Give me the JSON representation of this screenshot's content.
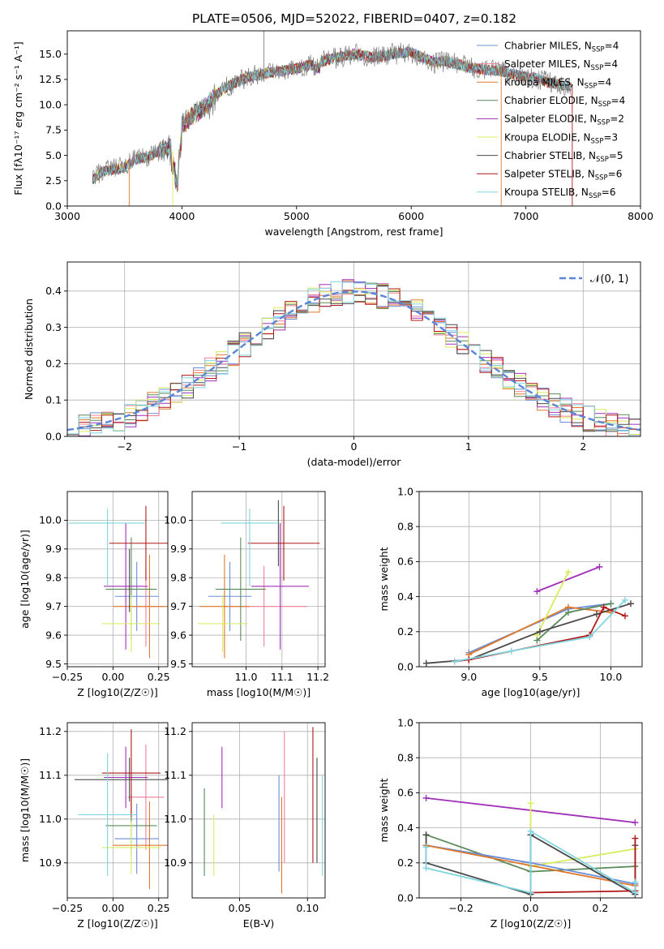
{
  "figure": {
    "title": "PLATE=0506, MJD=52022, FIBERID=0407, z=0.182",
    "colors": {
      "Chabrier MILES": "#6a8fd8",
      "Salpeter MILES": "#f07f95",
      "Kroupa MILES": "#e0782a",
      "Chabrier ELODIE": "#5a8a5a",
      "Salpeter ELODIE": "#a030b8",
      "Kroupa ELODIE": "#d8ec5c",
      "Chabrier STELIB": "#4a4a4a",
      "Salpeter STELIB": "#b01818",
      "Kroupa STELIB": "#7fd6e0"
    }
  },
  "chart_data": [
    {
      "type": "line",
      "title": "PLATE=0506, MJD=52022, FIBERID=0407, z=0.182",
      "xlabel": "wavelength [Angstrom, rest frame]",
      "ylabel": "Flux [fλ10⁻¹⁷ erg cm⁻² s⁻¹ A⁻¹]",
      "xlim": [
        3000,
        8000
      ],
      "ylim": [
        0,
        17.3
      ],
      "xticks": [
        3000,
        4000,
        5000,
        6000,
        7000,
        8000
      ],
      "yticks": [
        0.0,
        2.5,
        5.0,
        7.5,
        10.0,
        12.5,
        15.0
      ],
      "legend_position": "top-right",
      "spectrum_envelope": {
        "x": [
          3220,
          3300,
          3400,
          3500,
          3600,
          3700,
          3800,
          3900,
          3960,
          4000,
          4100,
          4200,
          4300,
          4400,
          4500,
          4600,
          4700,
          4800,
          4900,
          5000,
          5100,
          5200,
          5300,
          5400,
          5500,
          5600,
          5700,
          5800,
          5900,
          6000,
          6100,
          6200,
          6300,
          6400,
          6500,
          6600,
          6700,
          6800,
          6900,
          7000,
          7100,
          7200,
          7300,
          7400
        ],
        "y": [
          2.6,
          3.4,
          3.6,
          3.8,
          4.6,
          4.8,
          5.4,
          5.8,
          4.8,
          8.0,
          9.0,
          9.7,
          11.0,
          11.8,
          12.4,
          12.8,
          13.0,
          13.3,
          13.4,
          13.6,
          13.9,
          14.2,
          14.5,
          14.8,
          15.0,
          14.8,
          14.7,
          14.9,
          15.1,
          15.2,
          14.6,
          14.2,
          14.3,
          14.0,
          13.7,
          13.5,
          13.4,
          13.3,
          13.0,
          12.8,
          12.6,
          12.2,
          12.0,
          11.8
        ]
      },
      "series": [
        {
          "name": "Chabrier MILES, N_SSP=4"
        },
        {
          "name": "Salpeter MILES, N_SSP=4"
        },
        {
          "name": "Kroupa MILES, N_SSP=4"
        },
        {
          "name": "Chabrier ELODIE, N_SSP=4"
        },
        {
          "name": "Salpeter ELODIE, N_SSP=2"
        },
        {
          "name": "Kroupa ELODIE, N_SSP=3"
        },
        {
          "name": "Chabrier STELIB, N_SSP=5"
        },
        {
          "name": "Salpeter STELIB, N_SSP=6"
        },
        {
          "name": "Kroupa STELIB, N_SSP=6"
        }
      ]
    },
    {
      "type": "line",
      "xlabel": "(data-model)/error",
      "ylabel": "Normed distribution",
      "xlim": [
        -2.5,
        2.5
      ],
      "ylim": [
        0,
        0.48
      ],
      "xticks": [
        -2,
        -1,
        0,
        1,
        2
      ],
      "yticks": [
        0.0,
        0.1,
        0.2,
        0.3,
        0.4
      ],
      "grid": true,
      "legend_position": "top-right",
      "reference_curve": {
        "name": "𝒩(0, 1)",
        "mean": 0,
        "sigma": 1,
        "style": "dashed"
      },
      "histogram_bins": {
        "start": -2.5,
        "step": 0.1,
        "count": 50
      }
    },
    {
      "type": "scatter",
      "xlabel": "Z [log10(Z/Z☉)]",
      "ylabel": "age  [log10(age/yr)]",
      "xlim": [
        -0.25,
        0.3
      ],
      "ylim": [
        9.49,
        10.1
      ],
      "xticks": [
        -0.25,
        0.0,
        0.25
      ],
      "yticks": [
        9.5,
        9.6,
        9.7,
        9.8,
        9.9,
        10.0
      ],
      "grid": true,
      "points": [
        {
          "series": "Chabrier MILES",
          "x": 0.13,
          "y": 9.735,
          "xerr": 0.12,
          "yerr": [
            0.12,
            0.12
          ]
        },
        {
          "series": "Salpeter MILES",
          "x": 0.18,
          "y": 9.7,
          "xerr": 0.1,
          "yerr": [
            0.14,
            0.14
          ]
        },
        {
          "series": "Kroupa MILES",
          "x": 0.2,
          "y": 9.7,
          "xerr": 0.2,
          "yerr": [
            0.18,
            0.18
          ]
        },
        {
          "series": "Chabrier ELODIE",
          "x": 0.1,
          "y": 9.76,
          "xerr": 0.14,
          "yerr": [
            0.18,
            0.18
          ]
        },
        {
          "series": "Salpeter ELODIE",
          "x": 0.07,
          "y": 9.77,
          "xerr": 0.12,
          "yerr": [
            0.22,
            0.22
          ]
        },
        {
          "series": "Kroupa ELODIE",
          "x": 0.1,
          "y": 9.64,
          "xerr": 0.16,
          "yerr": [
            0.1,
            0.1
          ]
        },
        {
          "series": "Chabrier STELIB",
          "x": 0.09,
          "y": 9.78,
          "xerr": 0.0,
          "yerr": [
            0.1,
            0.12
          ]
        },
        {
          "series": "Salpeter STELIB",
          "x": 0.18,
          "y": 9.92,
          "xerr": 0.2,
          "yerr": [
            0.13,
            0.13
          ]
        },
        {
          "series": "Kroupa STELIB",
          "x": -0.03,
          "y": 9.99,
          "xerr": 0.21,
          "yerr": [
            0.22,
            0.05
          ]
        }
      ]
    },
    {
      "type": "scatter",
      "xlabel": "mass [log10(M/M☉)]",
      "ylabel": "",
      "xlim": [
        10.85,
        11.22
      ],
      "ylim": [
        9.49,
        10.1
      ],
      "xticks": [
        11.0,
        11.1,
        11.2
      ],
      "yticks": [
        9.5,
        9.6,
        9.7,
        9.8,
        9.9,
        10.0
      ],
      "grid": true,
      "points": [
        {
          "series": "Chabrier MILES",
          "x": 10.955,
          "y": 9.735,
          "xerr": 0.06,
          "yerr": [
            0.12,
            0.12
          ]
        },
        {
          "series": "Salpeter MILES",
          "x": 11.05,
          "y": 9.7,
          "xerr": 0.12,
          "yerr": [
            0.14,
            0.14
          ]
        },
        {
          "series": "Kroupa MILES",
          "x": 10.94,
          "y": 9.7,
          "xerr": 0.07,
          "yerr": [
            0.18,
            0.18
          ]
        },
        {
          "series": "Chabrier ELODIE",
          "x": 10.985,
          "y": 9.76,
          "xerr": 0.07,
          "yerr": [
            0.18,
            0.18
          ]
        },
        {
          "series": "Salpeter ELODIE",
          "x": 11.095,
          "y": 9.77,
          "xerr": 0.08,
          "yerr": [
            0.22,
            0.22
          ]
        },
        {
          "series": "Kroupa ELODIE",
          "x": 10.935,
          "y": 9.64,
          "xerr": 0.07,
          "yerr": [
            0.1,
            0.1
          ]
        },
        {
          "series": "Chabrier STELIB",
          "x": 11.09,
          "y": 9.99,
          "xerr": 0.0,
          "yerr": [
            0.15,
            0.08
          ]
        },
        {
          "series": "Salpeter STELIB",
          "x": 11.105,
          "y": 9.92,
          "xerr": 0.1,
          "yerr": [
            0.13,
            0.13
          ]
        },
        {
          "series": "Kroupa STELIB",
          "x": 11.01,
          "y": 9.99,
          "xerr": 0.08,
          "yerr": [
            0.22,
            0.05
          ]
        }
      ]
    },
    {
      "type": "line",
      "xlabel": "age  [log10(age/yr)]",
      "ylabel": "mass weight",
      "xlim": [
        8.65,
        10.22
      ],
      "ylim": [
        0,
        1.0
      ],
      "xticks": [
        9.0,
        9.5,
        10.0
      ],
      "yticks": [
        0.0,
        0.2,
        0.4,
        0.6,
        0.8,
        1.0
      ],
      "grid": true,
      "series": [
        {
          "name": "Chabrier MILES",
          "x": [
            9.0,
            9.7,
            10.0
          ],
          "y": [
            0.08,
            0.33,
            0.36
          ]
        },
        {
          "name": "Kroupa MILES",
          "x": [
            9.0,
            9.7,
            10.0
          ],
          "y": [
            0.07,
            0.34,
            0.31
          ]
        },
        {
          "name": "Salpeter ELODIE",
          "x": [
            9.48,
            9.92
          ],
          "y": [
            0.43,
            0.57
          ]
        },
        {
          "name": "Kroupa ELODIE",
          "x": [
            9.48,
            9.7
          ],
          "y": [
            0.18,
            0.54
          ]
        },
        {
          "name": "Chabrier ELODIE",
          "x": [
            9.48,
            9.7,
            10.0
          ],
          "y": [
            0.15,
            0.31,
            0.36
          ]
        },
        {
          "name": "Chabrier STELIB",
          "x": [
            8.7,
            9.0,
            9.5,
            9.9,
            10.14
          ],
          "y": [
            0.02,
            0.04,
            0.2,
            0.3,
            0.36
          ]
        },
        {
          "name": "Salpeter STELIB",
          "x": [
            8.9,
            9.0,
            9.85,
            9.95,
            10.1
          ],
          "y": [
            0.03,
            0.04,
            0.18,
            0.34,
            0.29
          ]
        },
        {
          "name": "Kroupa STELIB",
          "x": [
            8.9,
            9.3,
            9.85,
            10.1
          ],
          "y": [
            0.03,
            0.09,
            0.17,
            0.38
          ]
        }
      ]
    },
    {
      "type": "scatter",
      "xlabel": "Z [log10(Z/Z☉)]",
      "ylabel": "mass [log10(M/M☉)]",
      "xlim": [
        -0.25,
        0.3
      ],
      "ylim": [
        10.82,
        11.22
      ],
      "xticks": [
        -0.25,
        0.0,
        0.25
      ],
      "yticks": [
        10.9,
        11.0,
        11.1,
        11.2
      ],
      "grid": true,
      "points": [
        {
          "series": "Chabrier MILES",
          "x": 0.13,
          "y": 10.955,
          "xerr": 0.12,
          "yerr": [
            0.08,
            0.08
          ]
        },
        {
          "series": "Salpeter MILES",
          "x": 0.18,
          "y": 11.05,
          "xerr": 0.1,
          "yerr": [
            0.12,
            0.12
          ]
        },
        {
          "series": "Kroupa MILES",
          "x": 0.2,
          "y": 10.94,
          "xerr": 0.2,
          "yerr": [
            0.1,
            0.1
          ]
        },
        {
          "series": "Chabrier ELODIE",
          "x": 0.1,
          "y": 10.985,
          "xerr": 0.14,
          "yerr": [
            0.07,
            0.07
          ]
        },
        {
          "series": "Salpeter ELODIE",
          "x": 0.07,
          "y": 11.095,
          "xerr": 0.12,
          "yerr": [
            0.07,
            0.07
          ]
        },
        {
          "series": "Kroupa ELODIE",
          "x": 0.1,
          "y": 10.935,
          "xerr": 0.16,
          "yerr": [
            0.06,
            0.06
          ]
        },
        {
          "series": "Chabrier STELIB",
          "x": 0.09,
          "y": 11.09,
          "xerr": 0.3,
          "yerr": [
            0.05,
            0.05
          ]
        },
        {
          "series": "Salpeter STELIB",
          "x": 0.1,
          "y": 11.105,
          "xerr": 0.16,
          "yerr": [
            0.1,
            0.1
          ]
        },
        {
          "series": "Kroupa STELIB",
          "x": -0.03,
          "y": 11.01,
          "xerr": 0.16,
          "yerr": [
            0.14,
            0.14
          ]
        }
      ]
    },
    {
      "type": "scatter",
      "xlabel": "E(B-V)",
      "ylabel": "",
      "xlim": [
        0.015,
        0.113
      ],
      "ylim": [
        10.82,
        11.22
      ],
      "xticks": [
        0.05,
        0.1
      ],
      "yticks": [
        10.9,
        11.0,
        11.1,
        11.2
      ],
      "grid": true,
      "points": [
        {
          "series": "Chabrier MILES",
          "x": 0.079,
          "y": 10.99,
          "yerr": [
            0.11,
            0.11
          ]
        },
        {
          "series": "Salpeter MILES",
          "x": 0.083,
          "y": 11.05,
          "yerr": [
            0.15,
            0.15
          ]
        },
        {
          "series": "Kroupa MILES",
          "x": 0.081,
          "y": 10.94,
          "yerr": [
            0.11,
            0.11
          ]
        },
        {
          "series": "Chabrier ELODIE",
          "x": 0.024,
          "y": 10.97,
          "yerr": [
            0.1,
            0.1
          ]
        },
        {
          "series": "Salpeter ELODIE",
          "x": 0.037,
          "y": 11.095,
          "yerr": [
            0.07,
            0.07
          ]
        },
        {
          "series": "Kroupa ELODIE",
          "x": 0.031,
          "y": 10.94,
          "yerr": [
            0.07,
            0.07
          ]
        },
        {
          "series": "Chabrier STELIB",
          "x": 0.107,
          "y": 11.0,
          "yerr": [
            0.1,
            0.14
          ]
        },
        {
          "series": "Salpeter STELIB",
          "x": 0.104,
          "y": 11.05,
          "yerr": [
            0.15,
            0.16
          ]
        },
        {
          "series": "Kroupa STELIB",
          "x": 0.111,
          "y": 10.98,
          "yerr": [
            0.11,
            0.12
          ]
        }
      ]
    },
    {
      "type": "line",
      "xlabel": "Z [log10(Z/Z☉)]",
      "ylabel": "mass weight",
      "xlim": [
        -0.32,
        0.32
      ],
      "ylim": [
        0,
        1.0
      ],
      "xticks": [
        -0.2,
        0.0,
        0.2
      ],
      "yticks": [
        0.0,
        0.2,
        0.4,
        0.6,
        0.8,
        1.0
      ],
      "grid": true,
      "series": [
        {
          "name": "Salpeter ELODIE",
          "x": [
            -0.3,
            0.3
          ],
          "y": [
            0.57,
            0.43
          ]
        },
        {
          "name": "Kroupa ELODIE",
          "x": [
            0.0,
            0.0,
            0.3
          ],
          "y": [
            0.54,
            0.18,
            0.28
          ]
        },
        {
          "name": "Chabrier ELODIE",
          "x": [
            -0.3,
            0.0,
            0.3
          ],
          "y": [
            0.36,
            0.15,
            0.18
          ]
        },
        {
          "name": "Chabrier MILES",
          "x": [
            -0.3,
            0.0,
            0.3
          ],
          "y": [
            0.3,
            0.2,
            0.08
          ]
        },
        {
          "name": "Kroupa MILES",
          "x": [
            -0.3,
            0.3
          ],
          "y": [
            0.3,
            0.07
          ]
        },
        {
          "name": "Chabrier STELIB",
          "x": [
            -0.3,
            -0.3,
            0.0,
            0.0,
            0.3,
            0.3
          ],
          "y": [
            0.36,
            0.2,
            0.02,
            0.36,
            0.02,
            0.3
          ]
        },
        {
          "name": "Salpeter STELIB",
          "x": [
            0.0,
            0.3,
            0.3
          ],
          "y": [
            0.03,
            0.04,
            0.34
          ]
        },
        {
          "name": "Kroupa STELIB",
          "x": [
            -0.3,
            -0.3,
            0.0,
            0.0,
            0.3,
            0.3
          ],
          "y": [
            0.29,
            0.17,
            0.03,
            0.38,
            0.03,
            0.09
          ]
        }
      ]
    }
  ]
}
